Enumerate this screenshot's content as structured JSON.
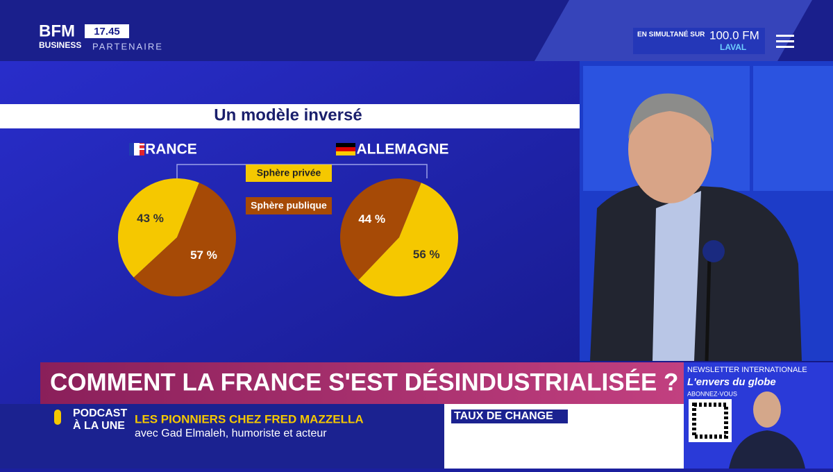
{
  "header": {
    "logo_top": "BFM",
    "logo_bottom": "BUSINESS",
    "time": "17.45",
    "partner": "PARTENAIRE",
    "radio_label": "EN SIMULTANÉ SUR",
    "radio_freq": "100.0 FM",
    "radio_city": "LAVAL"
  },
  "panel_title": "Un modèle inversé",
  "chart_data": [
    {
      "type": "pie",
      "title": "FRANCE",
      "categories": [
        "Sphère privée",
        "Sphère publique"
      ],
      "values": [
        43,
        57
      ],
      "value_labels": [
        "43 %",
        "57 %"
      ],
      "colors": [
        "#f5c800",
        "#a64a06"
      ]
    },
    {
      "type": "pie",
      "title": "ALLEMAGNE",
      "categories": [
        "Sphère privée",
        "Sphère publique"
      ],
      "values": [
        56,
        44
      ],
      "value_labels": [
        "56 %",
        "44 %"
      ],
      "colors": [
        "#f5c800",
        "#a64a06"
      ]
    }
  ],
  "headline": "COMMENT LA FRANCE S'EST DÉSINDUSTRIALISÉE ?",
  "ticker": {
    "podcast": "PODCAST",
    "a_la_une": "À LA UNE",
    "show": "LES PIONNIERS CHEZ FRED MAZZELLA",
    "guest": "avec Gad Elmaleh, humoriste et acteur",
    "market": "TAUX DE CHANGE"
  },
  "promo": {
    "kicker": "NEWSLETTER INTERNATIONALE",
    "name": "L'envers du globe",
    "cta": "ABONNEZ-VOUS"
  }
}
